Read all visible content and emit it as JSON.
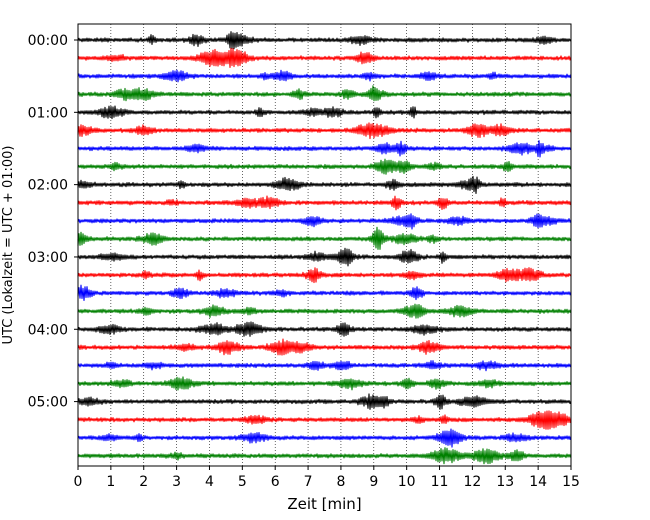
{
  "chart_data": {
    "type": "line",
    "chart_kind": "helicorder",
    "title": "",
    "xlabel": "Zeit  [min]",
    "ylabel": "UTC (Lokalzeit = UTC + 01:00)",
    "xlim": [
      0,
      15
    ],
    "x_ticks": [
      "0",
      "1",
      "2",
      "3",
      "4",
      "5",
      "6",
      "7",
      "8",
      "9",
      "10",
      "11",
      "12",
      "13",
      "14",
      "15"
    ],
    "y_ticks": [
      "00:00",
      "01:00",
      "02:00",
      "03:00",
      "04:00",
      "05:00"
    ],
    "y_tick_rows": [
      0,
      4,
      8,
      12,
      16,
      20
    ],
    "rows_per_hour": 4,
    "minutes_per_row": 15,
    "grid": "vertical dotted lines at each minute",
    "trace_colors": [
      "#000000",
      "#ff0000",
      "#0000ff",
      "#008000"
    ],
    "traces": [
      {
        "start": "00:00",
        "color": "#000000"
      },
      {
        "start": "00:15",
        "color": "#ff0000"
      },
      {
        "start": "00:30",
        "color": "#0000ff"
      },
      {
        "start": "00:45",
        "color": "#008000"
      },
      {
        "start": "01:00",
        "color": "#000000"
      },
      {
        "start": "01:15",
        "color": "#ff0000"
      },
      {
        "start": "01:30",
        "color": "#0000ff"
      },
      {
        "start": "01:45",
        "color": "#008000"
      },
      {
        "start": "02:00",
        "color": "#000000"
      },
      {
        "start": "02:15",
        "color": "#ff0000"
      },
      {
        "start": "02:30",
        "color": "#0000ff"
      },
      {
        "start": "02:45",
        "color": "#008000"
      },
      {
        "start": "03:00",
        "color": "#000000"
      },
      {
        "start": "03:15",
        "color": "#ff0000"
      },
      {
        "start": "03:30",
        "color": "#0000ff"
      },
      {
        "start": "03:45",
        "color": "#008000"
      },
      {
        "start": "04:00",
        "color": "#000000"
      },
      {
        "start": "04:15",
        "color": "#ff0000"
      },
      {
        "start": "04:30",
        "color": "#0000ff"
      },
      {
        "start": "04:45",
        "color": "#008000"
      },
      {
        "start": "05:00",
        "color": "#000000"
      },
      {
        "start": "05:15",
        "color": "#ff0000"
      },
      {
        "start": "05:30",
        "color": "#0000ff"
      },
      {
        "start": "05:45",
        "color": "#008000"
      }
    ]
  }
}
